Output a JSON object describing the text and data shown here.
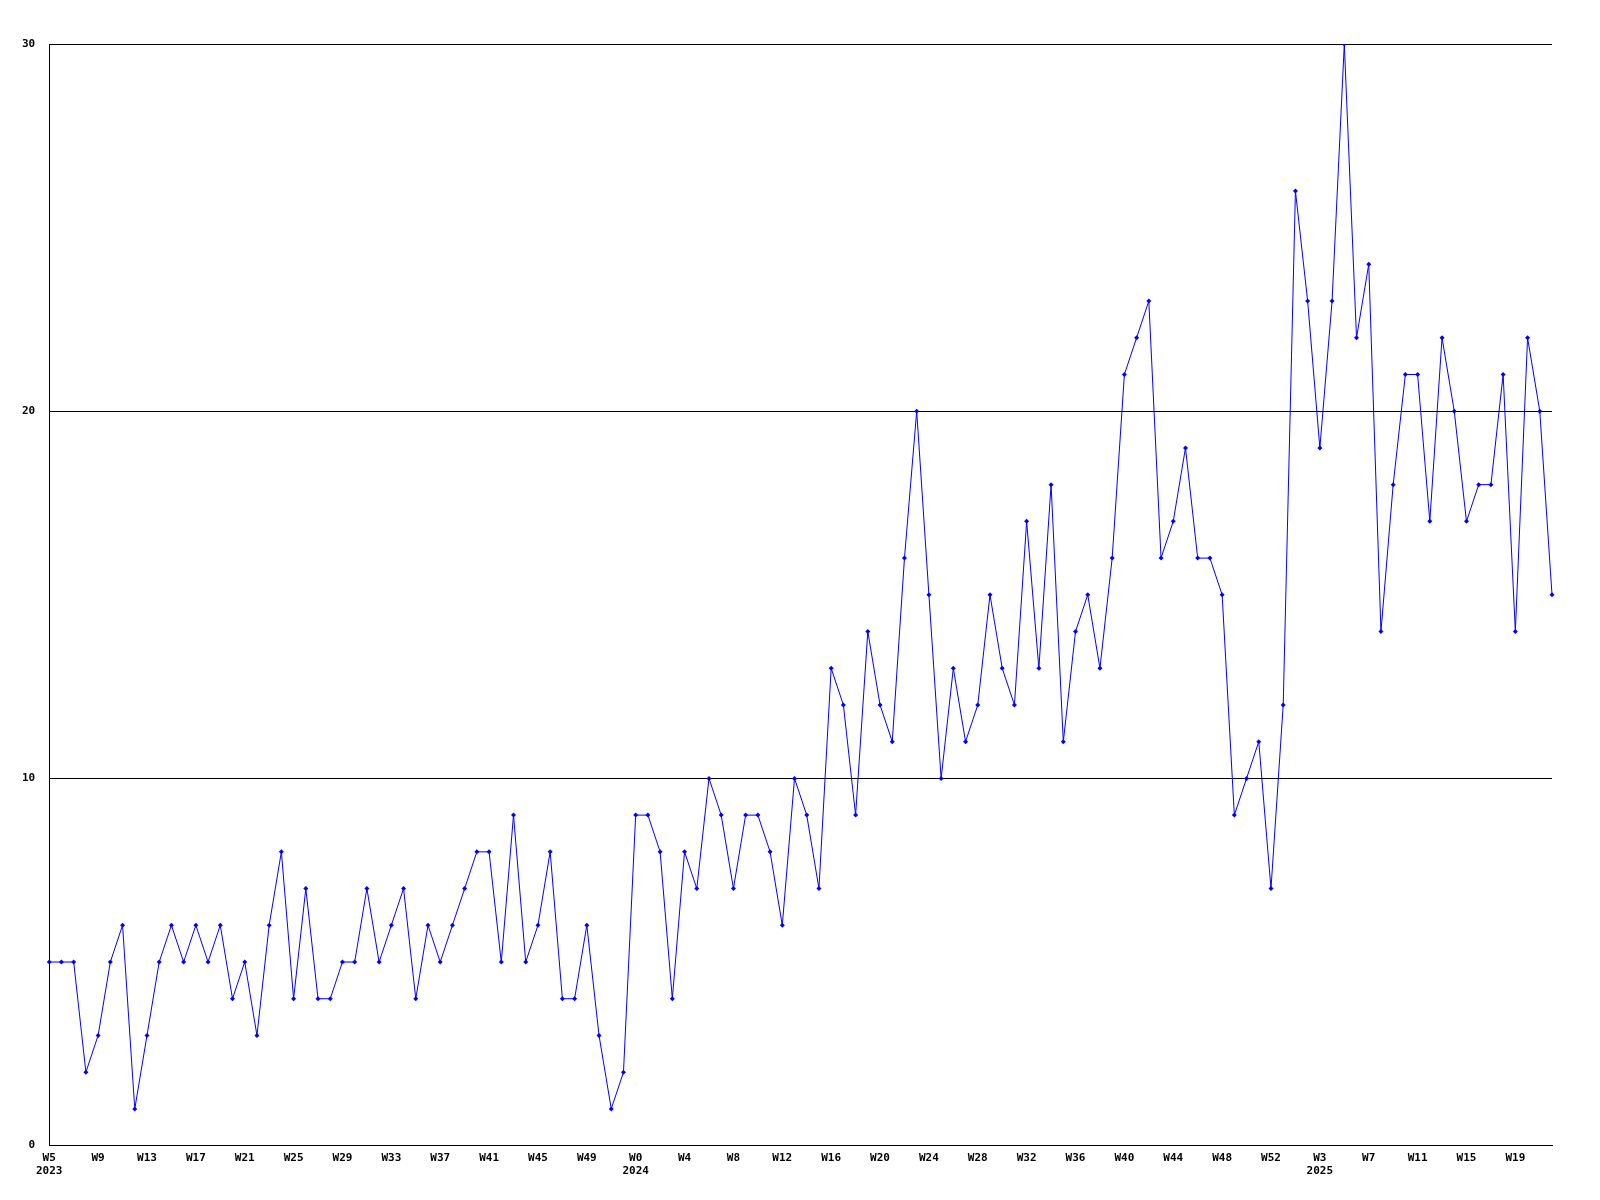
{
  "chart_data": {
    "type": "line",
    "categories": [
      "W5\n2023",
      null,
      null,
      null,
      "W9",
      null,
      null,
      null,
      "W13",
      null,
      null,
      null,
      "W17",
      null,
      null,
      null,
      "W21",
      null,
      null,
      null,
      "W25",
      null,
      null,
      null,
      "W29",
      null,
      null,
      null,
      "W33",
      null,
      null,
      null,
      "W37",
      null,
      null,
      null,
      "W41",
      null,
      null,
      null,
      "W45",
      null,
      null,
      null,
      "W49",
      null,
      null,
      null,
      "W0\n2024",
      null,
      null,
      null,
      "W4",
      null,
      null,
      null,
      "W8",
      null,
      null,
      null,
      "W12",
      null,
      null,
      null,
      "W16",
      null,
      null,
      null,
      "W20",
      null,
      null,
      null,
      "W24",
      null,
      null,
      null,
      "W28",
      null,
      null,
      null,
      "W32",
      null,
      null,
      null,
      "W36",
      null,
      null,
      null,
      "W40",
      null,
      null,
      null,
      "W44",
      null,
      null,
      null,
      "W48",
      null,
      null,
      null,
      "W52",
      null,
      null,
      null,
      "W3\n2025",
      null,
      null,
      null,
      "W7",
      null,
      null,
      null,
      "W11",
      null,
      null,
      null,
      "W15",
      null,
      null,
      null,
      "W19",
      null,
      null,
      null
    ],
    "series": [
      {
        "color": "#0000ff",
        "values": [
          5,
          5,
          5,
          2,
          3,
          5,
          6,
          1,
          3,
          5,
          6,
          5,
          6,
          5,
          6,
          4,
          5,
          3,
          6,
          8,
          4,
          7,
          4,
          4,
          5,
          5,
          7,
          5,
          6,
          7,
          4,
          6,
          5,
          6,
          7,
          8,
          8,
          5,
          9,
          5,
          6,
          8,
          4,
          4,
          6,
          3,
          1,
          2,
          9,
          9,
          8,
          4,
          8,
          7,
          10,
          9,
          7,
          9,
          9,
          8,
          6,
          10,
          9,
          7,
          13,
          12,
          9,
          14,
          12,
          11,
          16,
          20,
          15,
          10,
          13,
          11,
          12,
          15,
          13,
          12,
          17,
          13,
          18,
          11,
          14,
          15,
          13,
          16,
          21,
          22,
          23,
          16,
          17,
          19,
          16,
          16,
          15,
          9,
          10,
          11,
          7,
          12,
          26,
          23,
          19,
          23,
          30,
          22,
          24,
          14,
          18,
          21,
          21,
          17,
          22,
          20,
          17,
          18,
          18,
          21,
          14,
          22,
          20,
          15
        ]
      }
    ],
    "ylim": [
      0,
      30
    ],
    "yticks": [
      0,
      10,
      20,
      30
    ],
    "grid": "y",
    "legend": false,
    "marker": "diamond",
    "line_style": "solid"
  }
}
